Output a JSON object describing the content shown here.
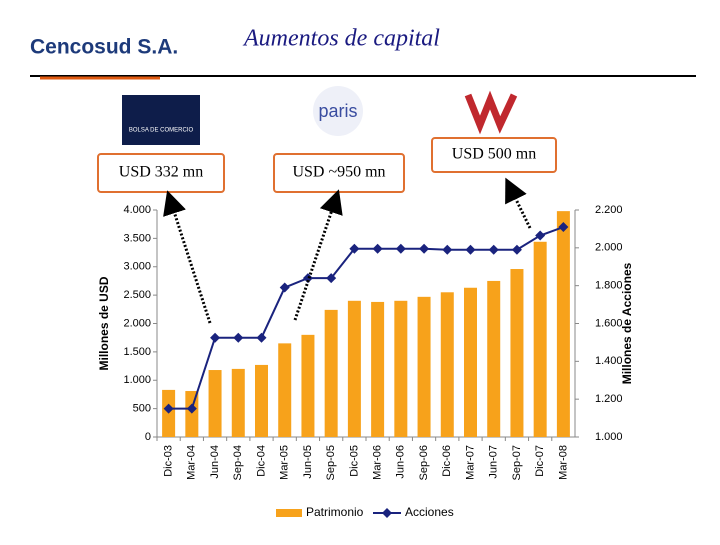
{
  "header": {
    "title": "Aumentos de capital",
    "logo": "Cencosud S.A.",
    "logos": [
      "BOLSA DE COMERCIO",
      "paris"
    ]
  },
  "chart_data": {
    "type": "bar-line",
    "categories": [
      "Dic-03",
      "Mar-04",
      "Jun-04",
      "Sep-04",
      "Dic-04",
      "Mar-05",
      "Jun-05",
      "Sep-05",
      "Dic-05",
      "Mar-06",
      "Jun-06",
      "Sep-06",
      "Dic-06",
      "Mar-07",
      "Jun-07",
      "Sep-07",
      "Dic-07",
      "Mar-08"
    ],
    "series": [
      {
        "name": "Patrimonio",
        "color": "#f7a21b",
        "kind": "bar",
        "values": [
          830,
          810,
          1180,
          1200,
          1270,
          1650,
          1800,
          2240,
          2400,
          2380,
          2400,
          2470,
          2550,
          2630,
          2750,
          2960,
          3440,
          3980
        ]
      },
      {
        "name": "Acciones",
        "color": "#1a237e",
        "kind": "line",
        "axis": "y2",
        "values": [
          1150,
          1150,
          1525,
          1525,
          1525,
          1790,
          1840,
          1840,
          1995,
          1995,
          1995,
          1995,
          1990,
          1990,
          1990,
          1990,
          2065,
          2110
        ]
      }
    ],
    "ylabel": "Millones de USD",
    "y2label": "Millones de Acciones",
    "ylim": [
      0,
      4000
    ],
    "yticks": [
      0,
      500,
      {
        "value": 1000,
        "label": "1.000"
      },
      {
        "value": 1500,
        "label": "1.500"
      },
      {
        "value": 2000,
        "label": "2.000"
      },
      {
        "value": 2500,
        "label": "2.500"
      },
      {
        "value": 3000,
        "label": "3.000"
      },
      {
        "value": 3500,
        "label": "3.500"
      },
      {
        "value": 4000,
        "label": "4.000"
      }
    ],
    "y2lim": [
      1000,
      2200
    ],
    "y2ticks": [
      {
        "value": 1000,
        "label": "1.000"
      },
      {
        "value": 1200,
        "label": "1.200"
      },
      {
        "value": 1400,
        "label": "1.400"
      },
      {
        "value": 1600,
        "label": "1.600"
      },
      {
        "value": 1800,
        "label": "1.800"
      },
      {
        "value": 2000,
        "label": "2.000"
      },
      {
        "value": 2200,
        "label": "2.200"
      }
    ],
    "annotations": [
      "USD 332 mn",
      "USD ~950 mn",
      "USD 500 mn"
    ],
    "legend": "bottom"
  }
}
